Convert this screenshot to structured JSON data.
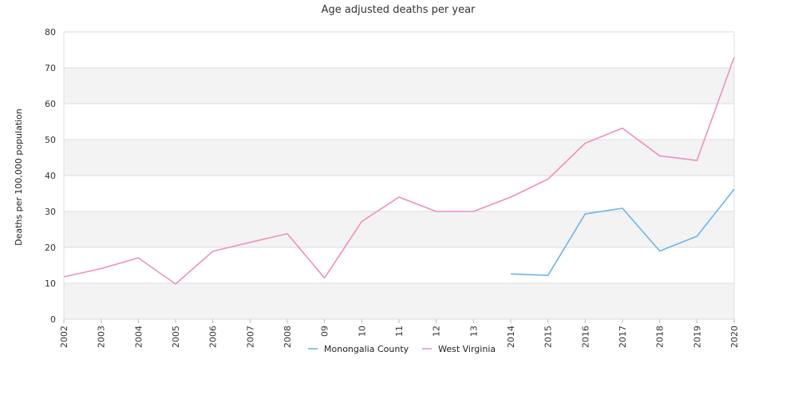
{
  "chart_data": {
    "type": "line",
    "title": "Age adjusted deaths per year",
    "xlabel": "",
    "ylabel": "Deaths per 100,000 population",
    "ylim": [
      0,
      80
    ],
    "yticks": [
      0,
      10,
      20,
      30,
      40,
      50,
      60,
      70,
      80
    ],
    "categories": [
      "2002",
      "2003",
      "2004",
      "2005",
      "2006",
      "2007",
      "2008",
      "09",
      "10",
      "11",
      "12",
      "13",
      "2014",
      "2015",
      "2016",
      "2017",
      "2018",
      "2019",
      "2020"
    ],
    "grid": true,
    "legend_position": "bottom",
    "series": [
      {
        "name": "Monongalia County",
        "color": "#6cb4ee",
        "values": [
          null,
          null,
          null,
          null,
          null,
          null,
          null,
          null,
          null,
          null,
          null,
          null,
          12.6,
          12.2,
          29.3,
          30.9,
          19.0,
          23.1,
          36.2
        ]
      },
      {
        "name": "West Virginia",
        "color": "#f08fbe",
        "values": [
          11.8,
          14.1,
          17.1,
          9.8,
          18.9,
          21.4,
          23.8,
          11.5,
          27.2,
          34.0,
          30.0,
          30.0,
          34.0,
          39.0,
          49.0,
          53.2,
          45.5,
          44.2,
          72.9
        ]
      }
    ]
  }
}
